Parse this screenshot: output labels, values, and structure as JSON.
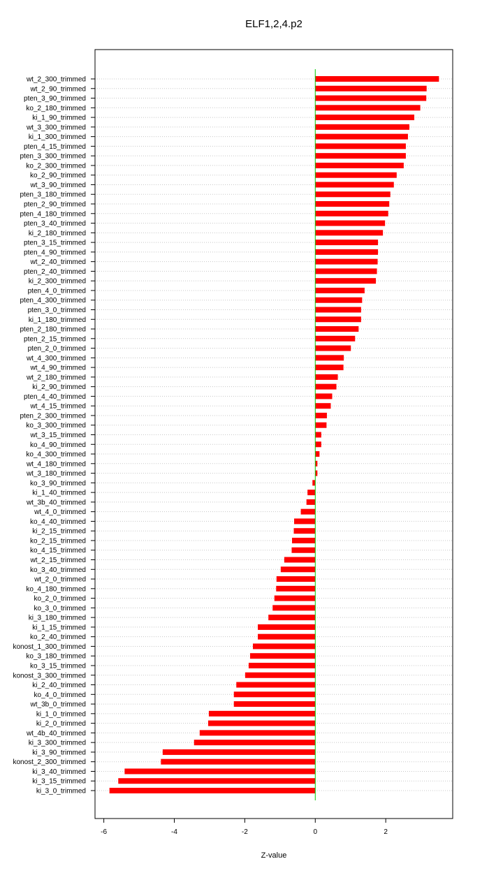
{
  "chart_data": {
    "type": "bar",
    "orientation": "horizontal",
    "title": "ELF1,2,4.p2",
    "xlabel": "Z-value",
    "ylabel": "",
    "xlim": [
      -6.25,
      3.9
    ],
    "xticks": [
      -6,
      -4,
      -2,
      0,
      2
    ],
    "xtick_labels": [
      "-6",
      "-4",
      "-2",
      "0",
      "2"
    ],
    "grid": "horizontal-dotted",
    "bar_color": "#ff0000",
    "zero_line_color": "#00cc00",
    "categories": [
      "wt_2_300_trimmed",
      "wt_2_90_trimmed",
      "pten_3_90_trimmed",
      "ko_2_180_trimmed",
      "ki_1_90_trimmed",
      "wt_3_300_trimmed",
      "ki_1_300_trimmed",
      "pten_4_15_trimmed",
      "pten_3_300_trimmed",
      "ko_2_300_trimmed",
      "ko_2_90_trimmed",
      "wt_3_90_trimmed",
      "pten_3_180_trimmed",
      "pten_2_90_trimmed",
      "pten_4_180_trimmed",
      "pten_3_40_trimmed",
      "ki_2_180_trimmed",
      "pten_3_15_trimmed",
      "pten_4_90_trimmed",
      "wt_2_40_trimmed",
      "pten_2_40_trimmed",
      "ki_2_300_trimmed",
      "pten_4_0_trimmed",
      "pten_4_300_trimmed",
      "pten_3_0_trimmed",
      "ki_1_180_trimmed",
      "pten_2_180_trimmed",
      "pten_2_15_trimmed",
      "pten_2_0_trimmed",
      "wt_4_300_trimmed",
      "wt_4_90_trimmed",
      "wt_2_180_trimmed",
      "ki_2_90_trimmed",
      "pten_4_40_trimmed",
      "wt_4_15_trimmed",
      "pten_2_300_trimmed",
      "ko_3_300_trimmed",
      "wt_3_15_trimmed",
      "ko_4_90_trimmed",
      "ko_4_300_trimmed",
      "wt_4_180_trimmed",
      "wt_3_180_trimmed",
      "ko_3_90_trimmed",
      "ki_1_40_trimmed",
      "wt_3b_40_trimmed",
      "wt_4_0_trimmed",
      "ko_4_40_trimmed",
      "ki_2_15_trimmed",
      "ko_2_15_trimmed",
      "ko_4_15_trimmed",
      "wt_2_15_trimmed",
      "ko_3_40_trimmed",
      "wt_2_0_trimmed",
      "ko_4_180_trimmed",
      "ko_2_0_trimmed",
      "ko_3_0_trimmed",
      "ki_3_180_trimmed",
      "ki_1_15_trimmed",
      "ko_2_40_trimmed",
      "konost_1_300_trimmed",
      "ko_3_180_trimmed",
      "ko_3_15_trimmed",
      "konost_3_300_trimmed",
      "ki_2_40_trimmed",
      "ko_4_0_trimmed",
      "wt_3b_0_trimmed",
      "ki_1_0_trimmed",
      "ki_2_0_trimmed",
      "wt_4b_40_trimmed",
      "ki_3_300_trimmed",
      "ki_3_90_trimmed",
      "konost_2_300_trimmed",
      "ki_3_40_trimmed",
      "ki_3_15_trimmed",
      "ki_3_0_trimmed"
    ],
    "values": [
      3.51,
      3.16,
      3.15,
      2.98,
      2.81,
      2.67,
      2.63,
      2.57,
      2.57,
      2.51,
      2.31,
      2.23,
      2.13,
      2.1,
      2.07,
      1.98,
      1.92,
      1.78,
      1.78,
      1.77,
      1.75,
      1.72,
      1.4,
      1.33,
      1.3,
      1.3,
      1.23,
      1.13,
      1.01,
      0.81,
      0.8,
      0.64,
      0.6,
      0.48,
      0.44,
      0.33,
      0.32,
      0.17,
      0.17,
      0.12,
      0.06,
      0.06,
      -0.08,
      -0.22,
      -0.25,
      -0.41,
      -0.6,
      -0.61,
      -0.66,
      -0.67,
      -0.88,
      -0.98,
      -1.1,
      -1.11,
      -1.16,
      -1.21,
      -1.33,
      -1.63,
      -1.63,
      -1.77,
      -1.85,
      -1.89,
      -1.99,
      -2.24,
      -2.31,
      -2.31,
      -3.02,
      -3.04,
      -3.28,
      -3.44,
      -4.33,
      -4.38,
      -5.41,
      -5.59,
      -5.84
    ]
  }
}
